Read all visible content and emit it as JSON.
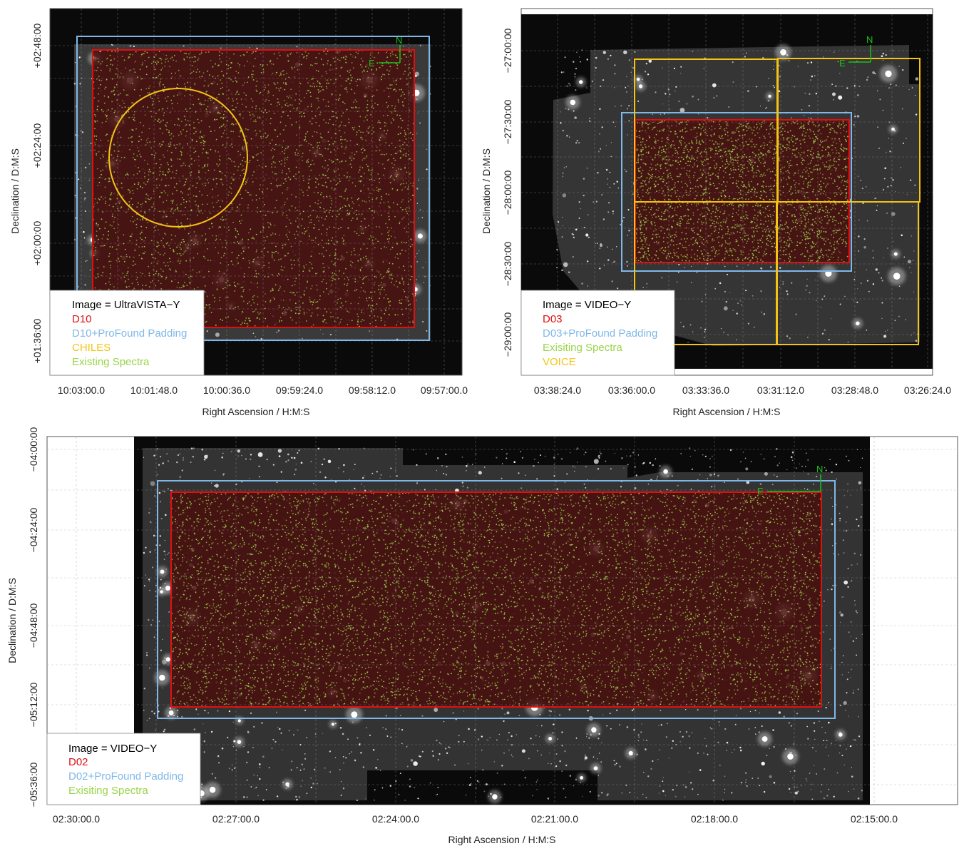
{
  "colors": {
    "region": "#e01010",
    "padding": "#7fb8e8",
    "spectra": "#9ad44a",
    "yellow": "#f3c414",
    "compass": "#19c219",
    "sky": "#0a0a0a"
  },
  "panels": [
    {
      "id": "d10",
      "legend": [
        {
          "text": "Image = UltraVISTA−Y",
          "color_key": "text"
        },
        {
          "text": "D10",
          "color_key": "region"
        },
        {
          "text": "D10+ProFound Padding",
          "color_key": "padding"
        },
        {
          "text": "CHILES",
          "color_key": "yellow"
        },
        {
          "text": "Existing Spectra",
          "color_key": "spectra"
        }
      ],
      "xticks": [
        "10:03:00.0",
        "10:01:48.0",
        "10:00:36.0",
        "09:59:24.0",
        "09:58:12.0",
        "09:57:00.0"
      ],
      "yticks": [
        "+02:48:00",
        "+02:24:00",
        "+02:00:00",
        "+01:36:00"
      ],
      "xlabel": "Right Ascension / H:M:S",
      "ylabel": "Declination / D:M:S",
      "compass": {
        "n": "N",
        "e": "E"
      }
    },
    {
      "id": "d03",
      "legend": [
        {
          "text": "Image = VIDEO−Y",
          "color_key": "text"
        },
        {
          "text": "D03",
          "color_key": "region"
        },
        {
          "text": "D03+ProFound Padding",
          "color_key": "padding"
        },
        {
          "text": "Exisiting Spectra",
          "color_key": "spectra"
        },
        {
          "text": "VOICE",
          "color_key": "yellow"
        }
      ],
      "xticks": [
        "03:38:24.0",
        "03:36:00.0",
        "03:33:36.0",
        "03:31:12.0",
        "03:28:48.0",
        "03:26:24.0"
      ],
      "yticks": [
        "−27:00:00",
        "−27:30:00",
        "−28:00:00",
        "−28:30:00",
        "−29:00:00"
      ],
      "xlabel": "Right Ascension / H:M:S",
      "ylabel": "Declination / D:M:S",
      "compass": {
        "n": "N",
        "e": "E"
      }
    },
    {
      "id": "d02",
      "legend": [
        {
          "text": "Image = VIDEO−Y",
          "color_key": "text"
        },
        {
          "text": "D02",
          "color_key": "region"
        },
        {
          "text": "D02+ProFound Padding",
          "color_key": "padding"
        },
        {
          "text": "Exisiting Spectra",
          "color_key": "spectra"
        }
      ],
      "xticks": [
        "02:30:00.0",
        "02:27:00.0",
        "02:24:00.0",
        "02:21:00.0",
        "02:18:00.0",
        "02:15:00.0"
      ],
      "yticks": [
        "−04:00:00",
        "−04:24:00",
        "−04:48:00",
        "−05:12:00",
        "−05:36:00"
      ],
      "xlabel": "Right Ascension / H:M:S",
      "ylabel": "Declination / D:M:S",
      "compass": {
        "n": "N",
        "e": "E"
      }
    }
  ]
}
